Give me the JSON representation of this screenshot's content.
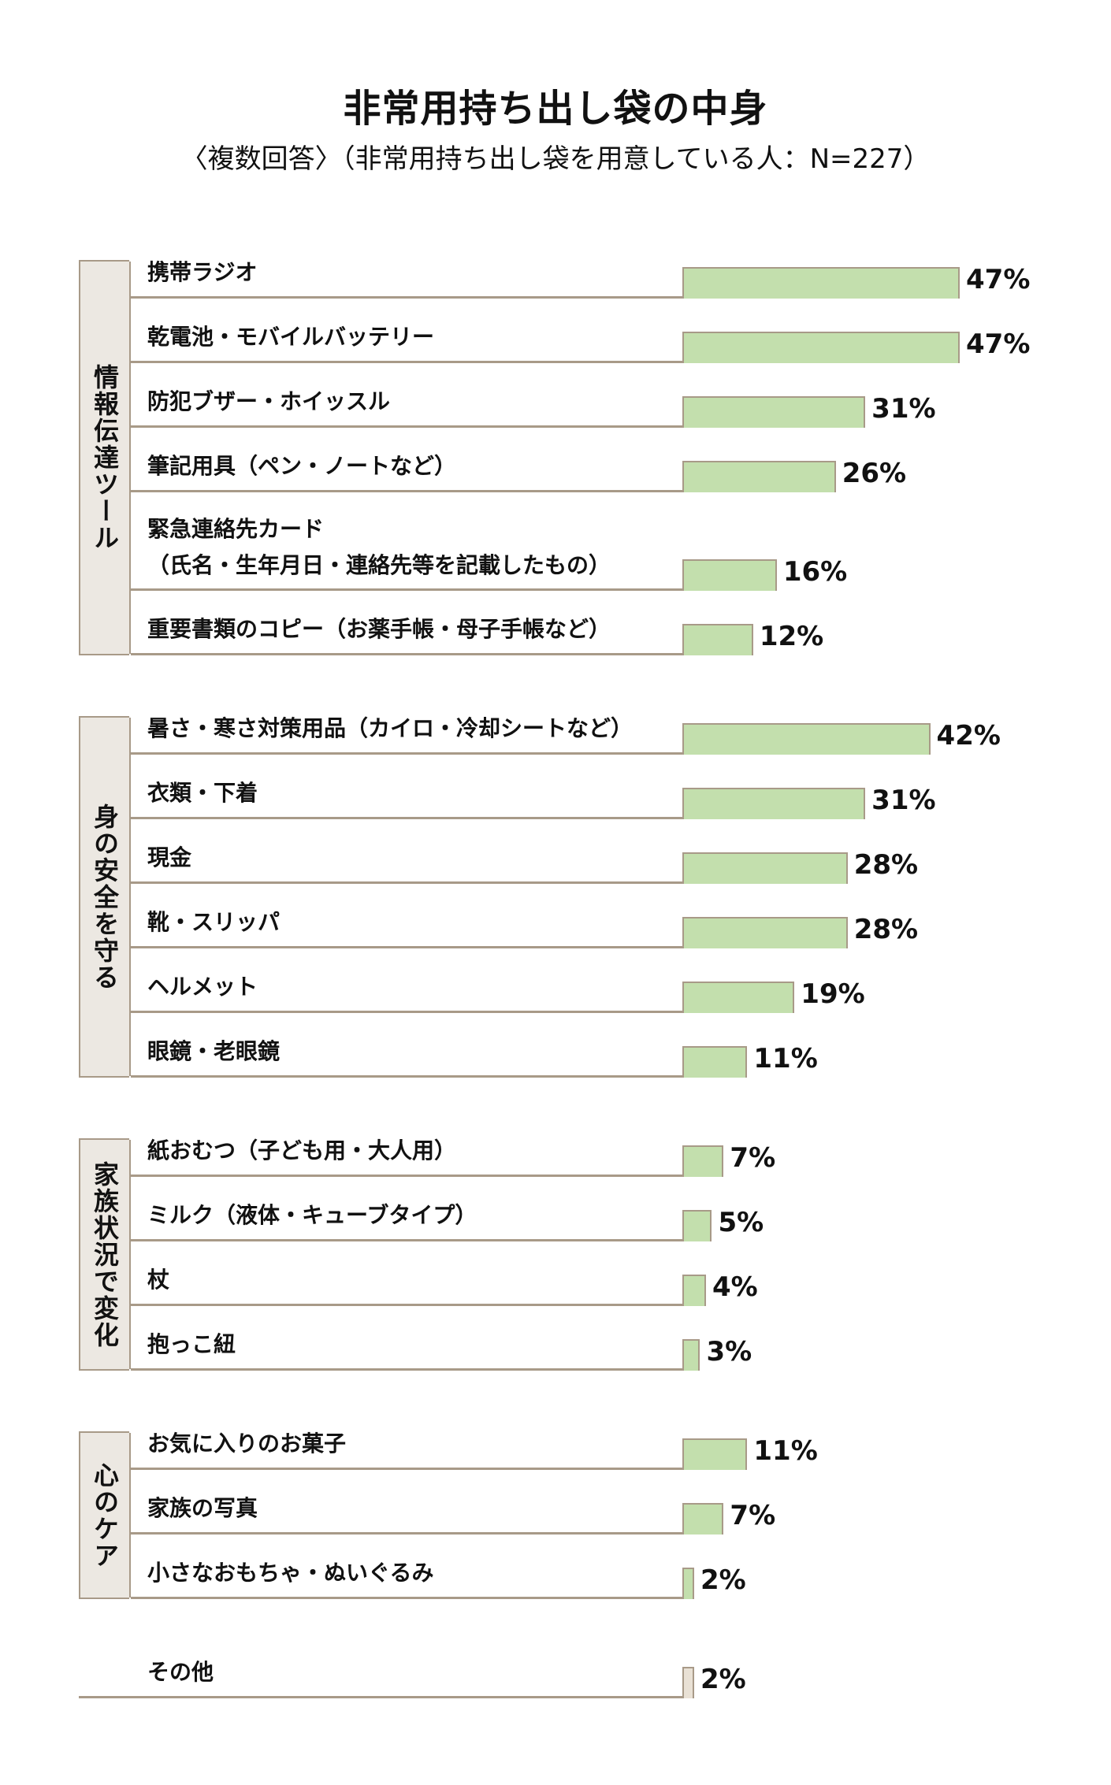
{
  "title": "非常用持ち出し袋の中身",
  "subtitle": "〈複数回答〉（非常用持ち出し袋を用意している人：N=227）",
  "colors": {
    "bar": "#c3dfad",
    "other_bar": "#e9e1d5",
    "line": "#a89a88",
    "group_bg": "#ece8e2"
  },
  "chart_data": {
    "type": "bar",
    "orientation": "horizontal",
    "title": "非常用持ち出し袋の中身",
    "subtitle": "〈複数回答〉（非常用持ち出し袋を用意している人：N=227）",
    "unit": "%",
    "xlim": [
      0,
      50
    ],
    "groups": [
      {
        "name": "情報伝達ツール",
        "items": [
          {
            "label": [
              "携帯ラジオ"
            ],
            "value": 47
          },
          {
            "label": [
              "乾電池・モバイルバッテリー"
            ],
            "value": 47
          },
          {
            "label": [
              "防犯ブザー・ホイッスル"
            ],
            "value": 31
          },
          {
            "label": [
              "筆記用具（ペン・ノートなど）"
            ],
            "value": 26
          },
          {
            "label": [
              "緊急連絡先カード",
              "（氏名・生年月日・連絡先等を記載したもの）"
            ],
            "value": 16
          },
          {
            "label": [
              "重要書類のコピー（お薬手帳・母子手帳など）"
            ],
            "value": 12
          }
        ]
      },
      {
        "name": "身の安全を守る",
        "items": [
          {
            "label": [
              "暑さ・寒さ対策用品（カイロ・冷却シートなど）"
            ],
            "value": 42
          },
          {
            "label": [
              "衣類・下着"
            ],
            "value": 31
          },
          {
            "label": [
              "現金"
            ],
            "value": 28
          },
          {
            "label": [
              "靴・スリッパ"
            ],
            "value": 28
          },
          {
            "label": [
              "ヘルメット"
            ],
            "value": 19
          },
          {
            "label": [
              "眼鏡・老眼鏡"
            ],
            "value": 11
          }
        ]
      },
      {
        "name": "家族状況で変化",
        "items": [
          {
            "label": [
              "紙おむつ（子ども用・大人用）"
            ],
            "value": 7
          },
          {
            "label": [
              "ミルク（液体・キューブタイプ）"
            ],
            "value": 5
          },
          {
            "label": [
              "杖"
            ],
            "value": 4
          },
          {
            "label": [
              "抱っこ紐"
            ],
            "value": 3
          }
        ]
      },
      {
        "name": "心のケア",
        "items": [
          {
            "label": [
              "お気に入りのお菓子"
            ],
            "value": 11
          },
          {
            "label": [
              "家族の写真"
            ],
            "value": 7
          },
          {
            "label": [
              "小さなおもちゃ・ぬいぐるみ"
            ],
            "value": 2
          }
        ]
      },
      {
        "name": "",
        "other": true,
        "items": [
          {
            "label": [
              "その他"
            ],
            "value": 2
          }
        ]
      }
    ]
  }
}
